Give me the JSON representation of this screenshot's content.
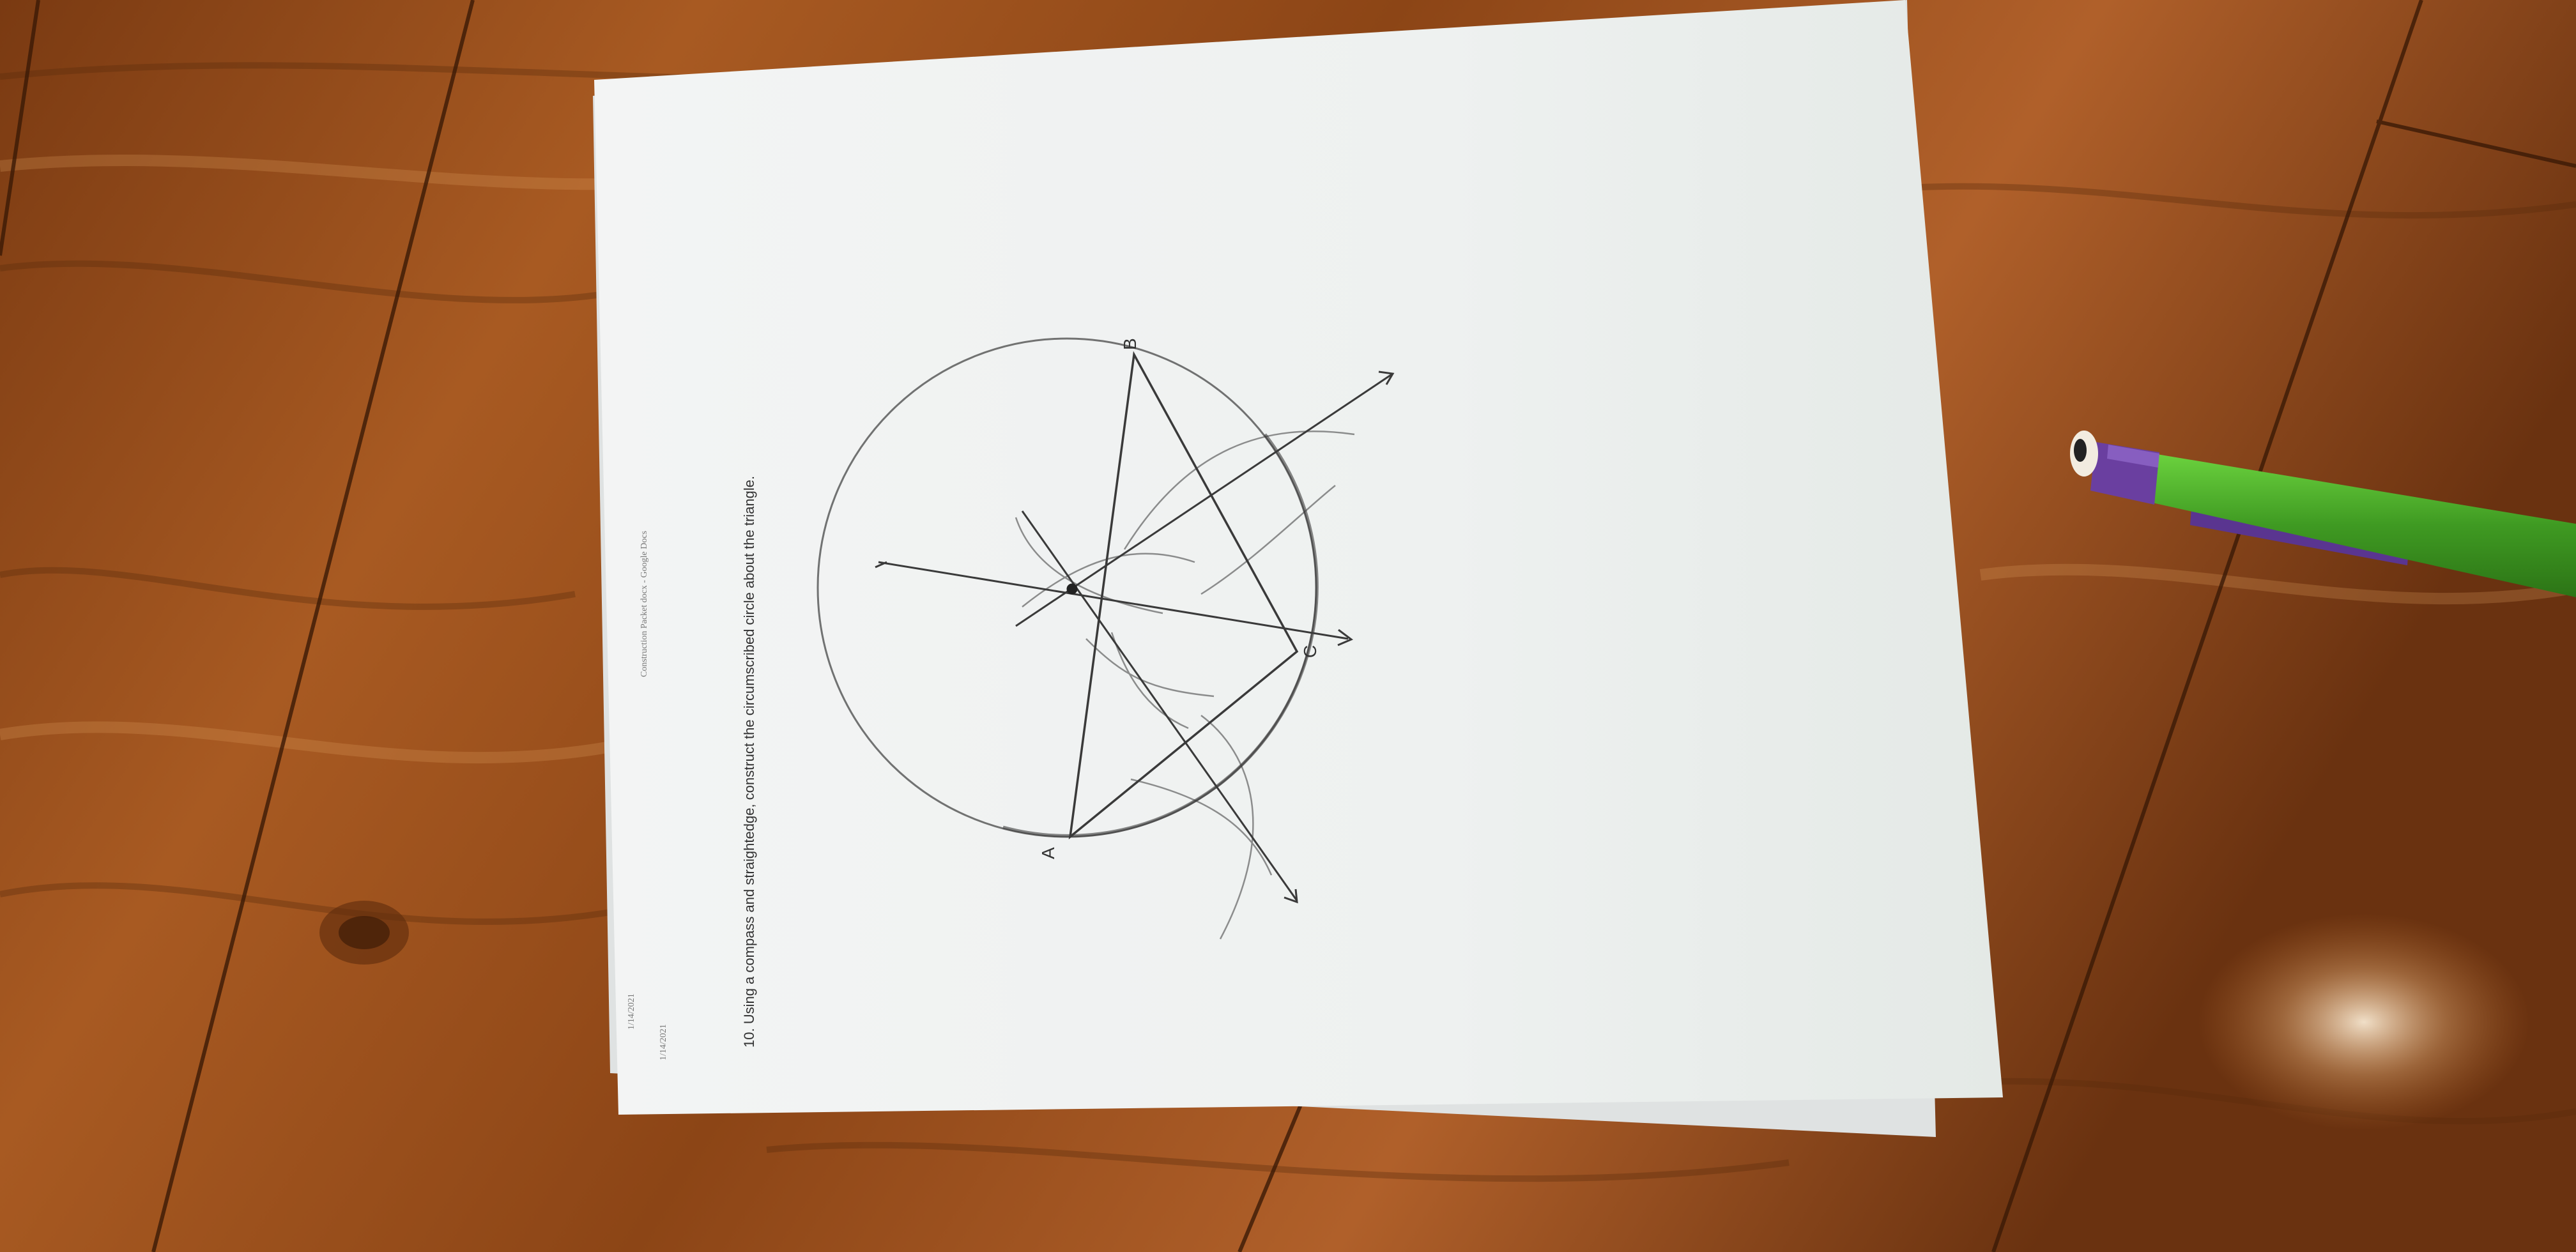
{
  "photo": {
    "subject": "Geometry worksheet on a wooden floor",
    "page": {
      "header_date_back": "1/14/2021",
      "header_date_front": "1/14/2021",
      "header_title": "Construction Packet docx - Google Docs",
      "problem_text": "10. Using a compass and straightedge, construct the circumscribed circle about the triangle.",
      "vertex_labels": {
        "a": "A",
        "b": "B",
        "c": "C"
      }
    },
    "objects": {
      "pencil": "mechanical-pencil-green-purple"
    },
    "colors": {
      "wood_dark": "#6e3510",
      "wood_mid": "#a4561f",
      "wood_light": "#c97a35",
      "paper": "#eef0f0",
      "paper_shadow": "#d4d8d8",
      "pencil_green": "#4caa2a",
      "pencil_purple": "#6a3fa0",
      "graphite": "#3a3a3a"
    }
  }
}
